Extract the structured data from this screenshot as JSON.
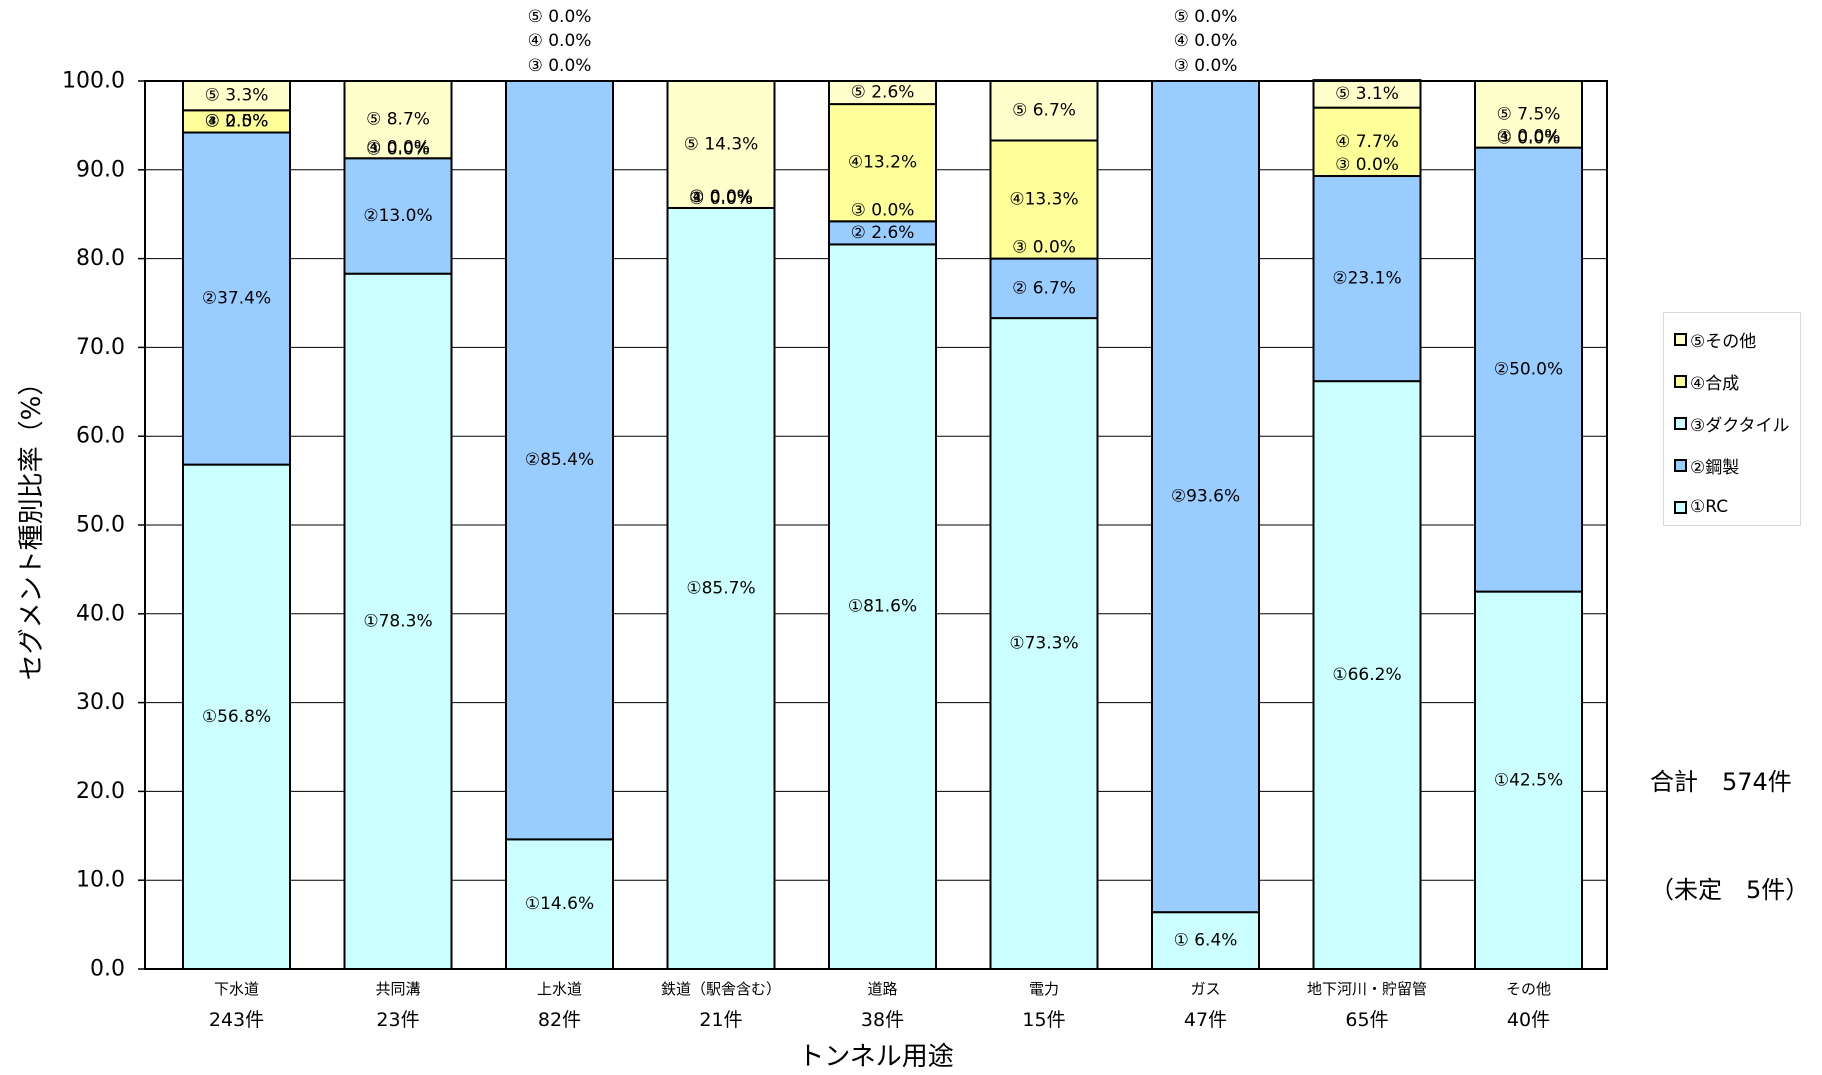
{
  "chart_data": {
    "type": "bar",
    "stacked": true,
    "title": "",
    "xlabel": "トンネル用途",
    "ylabel": "セグメント種別比率（%）",
    "ylim": [
      0,
      100
    ],
    "yticks": [
      "0.0",
      "10.0",
      "20.0",
      "30.0",
      "40.0",
      "50.0",
      "60.0",
      "70.0",
      "80.0",
      "90.0",
      "100.0"
    ],
    "grid": true,
    "categories": [
      "下水道",
      "共同溝",
      "上水道",
      "鉄道（駅舎含む）",
      "道路",
      "電力",
      "ガス",
      "地下河川・貯留管",
      "その他"
    ],
    "counts": [
      "243件",
      "23件",
      "82件",
      "21件",
      "38件",
      "15件",
      "47件",
      "65件",
      "40件"
    ],
    "series": [
      {
        "name": "①RC",
        "color": "#ccffff",
        "values": [
          56.8,
          78.3,
          14.6,
          85.7,
          81.6,
          73.3,
          6.4,
          66.2,
          42.5
        ],
        "labels": [
          "①56.8%",
          "①78.3%",
          "①14.6%",
          "①85.7%",
          "①81.6%",
          "①73.3%",
          "① 6.4%",
          "①66.2%",
          "①42.5%"
        ]
      },
      {
        "name": "②鋼製",
        "color": "#99ccff",
        "values": [
          37.4,
          13.0,
          85.4,
          0.0,
          2.6,
          6.7,
          93.6,
          23.1,
          50.0
        ],
        "labels": [
          "②37.4%",
          "②13.0%",
          "②85.4%",
          "② 0.0%",
          "② 2.6%",
          "② 6.7%",
          "②93.6%",
          "②23.1%",
          "②50.0%"
        ]
      },
      {
        "name": "③ダクタイル",
        "color": "#ccffff",
        "values": [
          0.0,
          0.0,
          0.0,
          0.0,
          0.0,
          0.0,
          0.0,
          0.0,
          0.0
        ],
        "labels": [
          "③ 0.0%",
          "③ 0.0%",
          "③ 0.0%",
          "③ 0.0%",
          "③ 0.0%",
          "③ 0.0%",
          "③ 0.0%",
          "③ 0.0%",
          "③ 0.0%"
        ]
      },
      {
        "name": "④合成",
        "color": "#ffff99",
        "values": [
          2.5,
          0.0,
          0.0,
          0.0,
          13.2,
          13.3,
          0.0,
          7.7,
          0.0
        ],
        "labels": [
          "④ 2.5%",
          "④ 0.0%",
          "④ 0.0%",
          "④ 0.0%",
          "④13.2%",
          "④13.3%",
          "④ 0.0%",
          "④ 7.7%",
          "④ 0.0%"
        ]
      },
      {
        "name": "⑤その他",
        "color": "#ffffcc",
        "values": [
          3.3,
          8.7,
          0.0,
          14.3,
          2.6,
          6.7,
          0.0,
          3.1,
          7.5
        ],
        "labels": [
          "⑤ 3.3%",
          "⑤ 8.7%",
          "⑤ 0.0%",
          "⑤ 14.3%",
          "⑤ 2.6%",
          "⑤ 6.7%",
          "⑤ 0.0%",
          "⑤ 3.1%",
          "⑤ 7.5%"
        ]
      }
    ],
    "legend": {
      "position": "right",
      "entries": [
        "⑤その他",
        "④合成",
        "③ダクタイル",
        "②鋼製",
        "①RC"
      ],
      "colors": [
        "#ffffcc",
        "#ffff99",
        "#ccffff",
        "#99ccff",
        "#ccffff"
      ]
    }
  },
  "summary": {
    "total": "合計　574件",
    "undetermined": "（未定　5件）"
  }
}
